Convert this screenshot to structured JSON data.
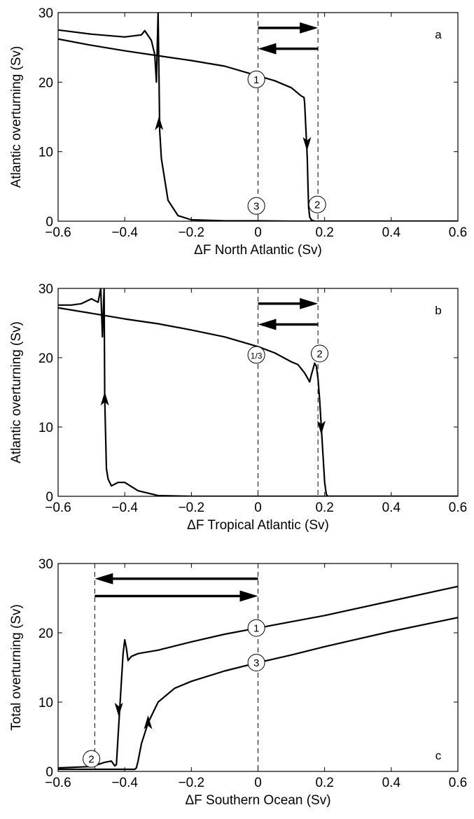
{
  "chart_data": [
    {
      "type": "line",
      "panel_label": "a",
      "xlabel": "ΔF North Atlantic (Sv)",
      "ylabel": "Atlantic overturning (Sv)",
      "xlim": [
        -0.6,
        0.6
      ],
      "ylim": [
        0,
        30
      ],
      "xticks": [
        "−0.6",
        "−0.4",
        "−0.2",
        "0",
        "0.2",
        "0.4",
        "0.6"
      ],
      "yticks": [
        "0",
        "10",
        "20",
        "30"
      ],
      "vlines": [
        0,
        0.18
      ],
      "arrows": [
        {
          "x0": 0.0,
          "x1": 0.18,
          "y": 27.8
        },
        {
          "x0": 0.18,
          "x1": 0.0,
          "y": 24.8
        }
      ],
      "markers": [
        {
          "text": "1",
          "x": -0.005,
          "y": 20.4
        },
        {
          "text": "2",
          "x": 0.178,
          "y": 2.4
        },
        {
          "text": "3",
          "x": -0.005,
          "y": 2.2
        }
      ],
      "series": [
        {
          "points": [
            [
              -0.6,
              26.2
            ],
            [
              -0.5,
              25.3
            ],
            [
              -0.4,
              24.5
            ],
            [
              -0.3,
              23.8
            ],
            [
              -0.2,
              23.1
            ],
            [
              -0.1,
              22.3
            ],
            [
              0,
              20.9
            ],
            [
              0.05,
              20.2
            ],
            [
              0.1,
              19.2
            ],
            [
              0.13,
              18.0
            ],
            [
              0.138,
              17.8
            ],
            [
              0.14,
              17.0
            ],
            [
              0.145,
              12.0
            ],
            [
              0.148,
              9.0
            ],
            [
              0.15,
              5.0
            ],
            [
              0.152,
              2.0
            ],
            [
              0.155,
              0.6
            ],
            [
              0.16,
              0.2
            ],
            [
              0.17,
              0.0
            ],
            [
              0.6,
              0.0
            ]
          ]
        },
        {
          "points": [
            [
              0.6,
              0.0
            ],
            [
              0.1,
              0.0
            ],
            [
              0.0,
              0.05
            ],
            [
              -0.1,
              0.05
            ],
            [
              -0.2,
              0.2
            ],
            [
              -0.24,
              0.8
            ],
            [
              -0.27,
              3.0
            ],
            [
              -0.29,
              9.0
            ],
            [
              -0.295,
              13.0
            ],
            [
              -0.297,
              20.0
            ],
            [
              -0.3,
              30.0
            ],
            [
              -0.305,
              20.0
            ],
            [
              -0.31,
              24.0
            ],
            [
              -0.32,
              26.0
            ],
            [
              -0.34,
              27.4
            ],
            [
              -0.35,
              26.8
            ],
            [
              -0.4,
              26.5
            ],
            [
              -0.5,
              26.9
            ],
            [
              -0.6,
              27.5
            ]
          ]
        }
      ],
      "direction_marks": [
        {
          "x": -0.297,
          "y": 14.0,
          "dir": "up"
        },
        {
          "x": 0.147,
          "y": 11.2,
          "dir": "down"
        }
      ]
    },
    {
      "type": "line",
      "panel_label": "b",
      "xlabel": "ΔF Tropical Atlantic (Sv)",
      "ylabel": "Atlantic overturning (Sv)",
      "xlim": [
        -0.6,
        0.6
      ],
      "ylim": [
        0,
        30
      ],
      "xticks": [
        "−0.6",
        "−0.4",
        "−0.2",
        "0",
        "0.2",
        "0.4",
        "0.6"
      ],
      "yticks": [
        "0",
        "10",
        "20",
        "30"
      ],
      "vlines": [
        0,
        0.18
      ],
      "arrows": [
        {
          "x0": 0.0,
          "x1": 0.18,
          "y": 27.8
        },
        {
          "x0": 0.18,
          "x1": 0.0,
          "y": 24.8
        }
      ],
      "markers": [
        {
          "text": "1/3",
          "x": -0.005,
          "y": 20.4
        },
        {
          "text": "2",
          "x": 0.185,
          "y": 20.6
        }
      ],
      "series": [
        {
          "points": [
            [
              -0.6,
              27.2
            ],
            [
              -0.5,
              26.4
            ],
            [
              -0.4,
              25.6
            ],
            [
              -0.3,
              24.9
            ],
            [
              -0.2,
              24.0
            ],
            [
              -0.1,
              23.0
            ],
            [
              0,
              21.6
            ],
            [
              0.05,
              20.7
            ],
            [
              0.1,
              19.4
            ],
            [
              0.12,
              19.0
            ],
            [
              0.14,
              17.8
            ],
            [
              0.155,
              16.5
            ],
            [
              0.16,
              17.5
            ],
            [
              0.17,
              19.2
            ],
            [
              0.175,
              18.8
            ],
            [
              0.18,
              17.0
            ],
            [
              0.185,
              14.0
            ],
            [
              0.19,
              10.0
            ],
            [
              0.195,
              6.0
            ],
            [
              0.2,
              2.0
            ],
            [
              0.205,
              0.3
            ],
            [
              0.21,
              0.0
            ],
            [
              0.6,
              0.0
            ]
          ]
        },
        {
          "points": [
            [
              0.6,
              0.0
            ],
            [
              -0.2,
              0.0
            ],
            [
              -0.3,
              0.1
            ],
            [
              -0.36,
              0.8
            ],
            [
              -0.4,
              2.0
            ],
            [
              -0.42,
              2.0
            ],
            [
              -0.44,
              1.5
            ],
            [
              -0.45,
              2.5
            ],
            [
              -0.455,
              4.0
            ],
            [
              -0.46,
              14.0
            ],
            [
              -0.462,
              30.0
            ],
            [
              -0.467,
              23.0
            ],
            [
              -0.472,
              30.0
            ],
            [
              -0.48,
              28.0
            ],
            [
              -0.5,
              28.5
            ],
            [
              -0.53,
              27.8
            ],
            [
              -0.56,
              27.6
            ],
            [
              -0.6,
              27.6
            ]
          ]
        }
      ],
      "direction_marks": [
        {
          "x": -0.46,
          "y": 14.0,
          "dir": "up"
        },
        {
          "x": 0.19,
          "y": 10.0,
          "dir": "down"
        }
      ]
    },
    {
      "type": "line",
      "panel_label": "c",
      "xlabel": "ΔF Southern Ocean (Sv)",
      "ylabel": "Total overturning (Sv)",
      "xlim": [
        -0.6,
        0.6
      ],
      "ylim": [
        0,
        30
      ],
      "xticks": [
        "−0.6",
        "−0.4",
        "−0.2",
        "0",
        "0.2",
        "0.4",
        "0.6"
      ],
      "yticks": [
        "0",
        "10",
        "20",
        "30"
      ],
      "vlines": [
        -0.49,
        0
      ],
      "arrows": [
        {
          "x0": 0.0,
          "x1": -0.49,
          "y": 27.8
        },
        {
          "x0": -0.49,
          "x1": 0.0,
          "y": 25.3
        }
      ],
      "markers": [
        {
          "text": "1",
          "x": -0.005,
          "y": 20.7
        },
        {
          "text": "2",
          "x": -0.5,
          "y": 1.8
        },
        {
          "text": "3",
          "x": -0.005,
          "y": 15.7
        }
      ],
      "series": [
        {
          "points": [
            [
              0.6,
              26.7
            ],
            [
              0.4,
              24.6
            ],
            [
              0.2,
              22.5
            ],
            [
              0.1,
              21.6
            ],
            [
              0,
              20.7
            ],
            [
              -0.1,
              19.8
            ],
            [
              -0.2,
              18.7
            ],
            [
              -0.3,
              17.5
            ],
            [
              -0.36,
              17.0
            ],
            [
              -0.38,
              16.6
            ],
            [
              -0.39,
              16.0
            ],
            [
              -0.395,
              17.8
            ],
            [
              -0.4,
              19.0
            ],
            [
              -0.405,
              17.0
            ],
            [
              -0.41,
              13.0
            ],
            [
              -0.415,
              9.0
            ],
            [
              -0.42,
              5.0
            ],
            [
              -0.425,
              1.0
            ],
            [
              -0.43,
              0.8
            ],
            [
              -0.44,
              1.5
            ],
            [
              -0.46,
              1.3
            ],
            [
              -0.5,
              0.7
            ],
            [
              -0.6,
              0.5
            ]
          ]
        },
        {
          "points": [
            [
              -0.6,
              0.3
            ],
            [
              -0.37,
              0.3
            ],
            [
              -0.365,
              0.5
            ],
            [
              -0.36,
              1.5
            ],
            [
              -0.35,
              4.0
            ],
            [
              -0.33,
              7.0
            ],
            [
              -0.3,
              10.0
            ],
            [
              -0.25,
              12.0
            ],
            [
              -0.2,
              13.0
            ],
            [
              -0.1,
              14.5
            ],
            [
              0,
              15.7
            ],
            [
              0.1,
              16.8
            ],
            [
              0.2,
              18.0
            ],
            [
              0.4,
              20.2
            ],
            [
              0.6,
              22.2
            ]
          ]
        }
      ],
      "direction_marks": [
        {
          "x": -0.418,
          "y": 9.0,
          "dir": "down"
        },
        {
          "x": -0.33,
          "y": 7.0,
          "dir": "up"
        }
      ]
    }
  ]
}
